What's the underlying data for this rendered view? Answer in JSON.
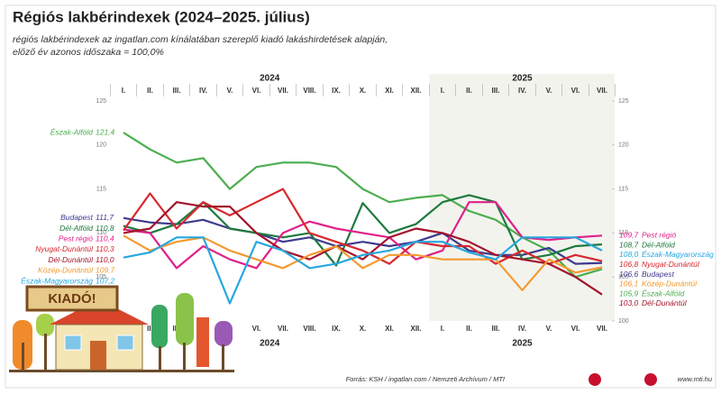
{
  "chart_data": {
    "type": "line",
    "title": "Régiós lakbérindexek (2024–2025. július)",
    "subtitle": [
      "régiós lakbérindexek az ingatlan.com kínálatában szereplő kiadó lakáshirdetések alapján,",
      "előző év azonos időszaka = 100,0%"
    ],
    "years": [
      "2024",
      "2025"
    ],
    "categories": [
      "I.",
      "II.",
      "III.",
      "IV.",
      "V.",
      "VI.",
      "VII.",
      "VIII.",
      "IX.",
      "X.",
      "XI.",
      "XII.",
      "I.",
      "II.",
      "III.",
      "IV.",
      "V.",
      "VI.",
      "VII."
    ],
    "ylim": [
      100,
      125
    ],
    "yticks": [
      100,
      105,
      110,
      115,
      120,
      125
    ],
    "grid": false,
    "series": [
      {
        "name": "Észak-Alföld",
        "color": "#4cae4f",
        "values": [
          121.4,
          119.5,
          118,
          118.5,
          115,
          117.5,
          118,
          118,
          117.5,
          115,
          113.5,
          114,
          114.3,
          112.5,
          111.5,
          109.5,
          108,
          105,
          105.9
        ],
        "value_labels": [
          "121,4",
          null,
          null,
          null,
          null,
          null,
          null,
          null,
          null,
          null,
          null,
          null,
          null,
          null,
          null,
          null,
          null,
          null,
          "105,9"
        ]
      },
      {
        "name": "Budapest",
        "color": "#3d3a8f",
        "values": [
          111.7,
          111.2,
          111,
          111.5,
          110.5,
          110,
          109,
          109.5,
          108.5,
          109,
          108.5,
          109,
          110,
          108,
          107.5,
          107.5,
          108.3,
          106.5,
          106.6
        ],
        "value_labels": [
          "111,7",
          null,
          null,
          null,
          null,
          null,
          null,
          null,
          null,
          null,
          null,
          null,
          null,
          null,
          null,
          null,
          null,
          null,
          "106,6"
        ]
      },
      {
        "name": "Dél-Alföld",
        "color": "#1d7a3e",
        "values": [
          110.8,
          110,
          111,
          113.5,
          110.5,
          110,
          109.5,
          110,
          106.3,
          113.4,
          110,
          111,
          113.5,
          114.3,
          113.5,
          107,
          107.5,
          108.5,
          108.7
        ],
        "value_labels": [
          "110,8",
          null,
          null,
          null,
          null,
          null,
          null,
          null,
          null,
          null,
          null,
          null,
          null,
          null,
          null,
          null,
          null,
          null,
          "108,7"
        ]
      },
      {
        "name": "Pest régió",
        "color": "#e0218a",
        "values": [
          110.4,
          110,
          106,
          108.5,
          107,
          106,
          110,
          111.3,
          110.5,
          110,
          109.5,
          107,
          108,
          113.5,
          113.5,
          109.5,
          109.2,
          109.5,
          109.7
        ],
        "value_labels": [
          "110,4",
          null,
          null,
          null,
          null,
          null,
          null,
          null,
          null,
          null,
          null,
          null,
          null,
          null,
          null,
          null,
          null,
          null,
          "109,7"
        ]
      },
      {
        "name": "Nyugat-Dunántúl",
        "color": "#d7282f",
        "values": [
          110.3,
          114.5,
          110.5,
          113.5,
          112,
          113.5,
          115,
          110,
          109,
          108,
          106.5,
          109,
          108.5,
          108.5,
          106.5,
          108,
          106.5,
          107.5,
          106.8
        ],
        "value_labels": [
          "110,3",
          null,
          null,
          null,
          null,
          null,
          null,
          null,
          null,
          null,
          null,
          null,
          null,
          null,
          null,
          null,
          null,
          null,
          "106,8"
        ]
      },
      {
        "name": "Dél-Dunántúl",
        "color": "#a3142b",
        "values": [
          110.0,
          110.5,
          113.5,
          113,
          113,
          110,
          108,
          107,
          108.5,
          107,
          109.5,
          110.5,
          110,
          109,
          107.5,
          107,
          106.5,
          105,
          103.0
        ],
        "value_labels": [
          "110,0",
          null,
          null,
          null,
          null,
          null,
          null,
          null,
          null,
          null,
          null,
          null,
          null,
          null,
          null,
          null,
          null,
          null,
          "103,0"
        ]
      },
      {
        "name": "Közép-Dunántúl",
        "color": "#f39a2e",
        "values": [
          109.7,
          108,
          109,
          109.5,
          108,
          107,
          106,
          107.5,
          108.5,
          106,
          107.5,
          107.5,
          107,
          107,
          107,
          103.5,
          107,
          105.5,
          106.1
        ],
        "value_labels": [
          "109,7",
          null,
          null,
          null,
          null,
          null,
          null,
          null,
          null,
          null,
          null,
          null,
          null,
          null,
          null,
          null,
          null,
          null,
          "106,1"
        ]
      },
      {
        "name": "Észak-Magyarország",
        "color": "#27a7df",
        "values": [
          107.2,
          107.8,
          109.5,
          109.5,
          102,
          109,
          108,
          106,
          106.5,
          107.5,
          108,
          109,
          109,
          107.8,
          107,
          109.5,
          109.5,
          109.5,
          108.0
        ],
        "value_labels": [
          "107,2",
          null,
          null,
          null,
          null,
          null,
          null,
          null,
          null,
          null,
          null,
          null,
          null,
          null,
          null,
          null,
          null,
          null,
          "108,0"
        ]
      }
    ],
    "sign_text": "KIADÓ!",
    "source": "Forrás: KSH / ingatlan.com / Nemzeti Archívum / MTI",
    "website": "www.mti.hu"
  }
}
